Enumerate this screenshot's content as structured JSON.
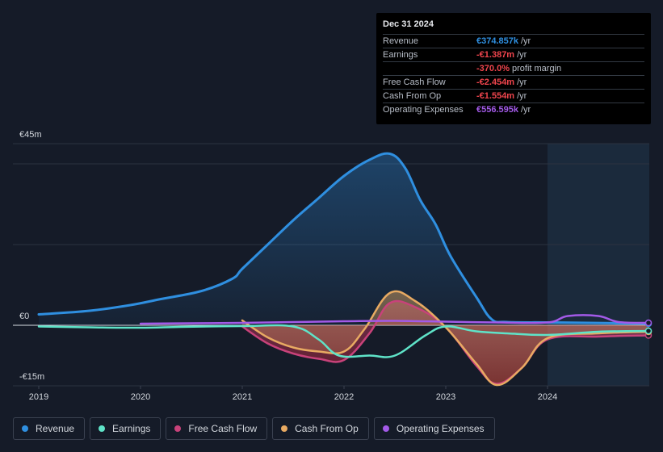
{
  "tooltip": {
    "date": "Dec 31 2024",
    "rows": [
      {
        "label": "Revenue",
        "value": "€374.857k",
        "unit": "/yr",
        "color": "#2f8fe0"
      },
      {
        "label": "Earnings",
        "value": "-€1.387m",
        "unit": "/yr",
        "color": "#f0454d"
      },
      {
        "label": "",
        "value": "-370.0%",
        "unit": "profit margin",
        "color": "#f0454d"
      },
      {
        "label": "Free Cash Flow",
        "value": "-€2.454m",
        "unit": "/yr",
        "color": "#f0454d"
      },
      {
        "label": "Cash From Op",
        "value": "-€1.554m",
        "unit": "/yr",
        "color": "#f0454d"
      },
      {
        "label": "Operating Expenses",
        "value": "€556.595k",
        "unit": "/yr",
        "color": "#a35ae8"
      }
    ]
  },
  "legend": [
    {
      "label": "Revenue",
      "color": "#2f8fe0"
    },
    {
      "label": "Earnings",
      "color": "#5fe3c8"
    },
    {
      "label": "Free Cash Flow",
      "color": "#c8427a"
    },
    {
      "label": "Cash From Op",
      "color": "#e8aa62"
    },
    {
      "label": "Operating Expenses",
      "color": "#a35ae8"
    }
  ],
  "chart_data": {
    "type": "area",
    "currency": "€",
    "y_tick_labels": [
      "€45m",
      "€0",
      "-€15m"
    ],
    "y_ticks": [
      45,
      0,
      -15
    ],
    "ylim": [
      -15,
      45
    ],
    "xlim": [
      2019.0,
      2025.0
    ],
    "x_ticks": [
      2019,
      2020,
      2021,
      2022,
      2023,
      2024
    ],
    "x_tick_labels": [
      "2019",
      "2020",
      "2021",
      "2022",
      "2023",
      "2024"
    ],
    "forecast_start": 2024.0,
    "series": [
      {
        "name": "Revenue",
        "color": "#2f8fe0",
        "fill": true,
        "points": [
          [
            2019.0,
            2.7
          ],
          [
            2019.5,
            3.6
          ],
          [
            2019.9,
            5.0
          ],
          [
            2020.2,
            6.5
          ],
          [
            2020.6,
            8.5
          ],
          [
            2020.9,
            11.5
          ],
          [
            2021.0,
            14
          ],
          [
            2021.25,
            20
          ],
          [
            2021.5,
            26
          ],
          [
            2021.75,
            31.5
          ],
          [
            2022.0,
            37
          ],
          [
            2022.25,
            41
          ],
          [
            2022.45,
            42.5
          ],
          [
            2022.6,
            39
          ],
          [
            2022.75,
            31
          ],
          [
            2022.9,
            25
          ],
          [
            2023.05,
            17
          ],
          [
            2023.3,
            7
          ],
          [
            2023.45,
            1.5
          ],
          [
            2023.6,
            0.8
          ],
          [
            2024.0,
            0.7
          ],
          [
            2024.4,
            0.6
          ],
          [
            2025.0,
            0.4
          ]
        ]
      },
      {
        "name": "Earnings",
        "color": "#5fe3c8",
        "fill": false,
        "points": [
          [
            2019.0,
            -0.3
          ],
          [
            2019.5,
            -0.5
          ],
          [
            2020.0,
            -0.6
          ],
          [
            2020.4,
            -0.4
          ],
          [
            2021.0,
            -0.2
          ],
          [
            2021.5,
            -0.3
          ],
          [
            2021.75,
            -3.5
          ],
          [
            2021.95,
            -7.5
          ],
          [
            2022.25,
            -7.5
          ],
          [
            2022.5,
            -7.5
          ],
          [
            2022.8,
            -2.5
          ],
          [
            2023.0,
            -0.3
          ],
          [
            2023.3,
            -1.5
          ],
          [
            2023.6,
            -2.0
          ],
          [
            2024.0,
            -2.4
          ],
          [
            2024.5,
            -1.6
          ],
          [
            2025.0,
            -1.4
          ]
        ]
      },
      {
        "name": "Free Cash Flow",
        "color": "#c8427a",
        "fill": true,
        "points": [
          [
            2021.0,
            -0.3
          ],
          [
            2021.25,
            -4.5
          ],
          [
            2021.5,
            -7.0
          ],
          [
            2021.75,
            -8.3
          ],
          [
            2022.0,
            -8.6
          ],
          [
            2022.25,
            -2.0
          ],
          [
            2022.45,
            5.5
          ],
          [
            2022.7,
            4.5
          ],
          [
            2023.0,
            -0.5
          ],
          [
            2023.3,
            -10.0
          ],
          [
            2023.5,
            -14.5
          ],
          [
            2023.75,
            -10.5
          ],
          [
            2024.0,
            -3.5
          ],
          [
            2024.5,
            -2.8
          ],
          [
            2025.0,
            -2.5
          ]
        ]
      },
      {
        "name": "Cash From Op",
        "color": "#e8aa62",
        "fill": true,
        "points": [
          [
            2021.0,
            1.2
          ],
          [
            2021.25,
            -3.0
          ],
          [
            2021.5,
            -5.5
          ],
          [
            2021.75,
            -6.5
          ],
          [
            2022.0,
            -6.5
          ],
          [
            2022.2,
            -1.0
          ],
          [
            2022.45,
            8.0
          ],
          [
            2022.7,
            6.0
          ],
          [
            2023.0,
            -0.5
          ],
          [
            2023.3,
            -9.5
          ],
          [
            2023.5,
            -14.8
          ],
          [
            2023.75,
            -10.5
          ],
          [
            2024.0,
            -3.2
          ],
          [
            2024.5,
            -2.0
          ],
          [
            2025.0,
            -1.6
          ]
        ]
      },
      {
        "name": "Operating Expenses",
        "color": "#a35ae8",
        "fill": false,
        "points": [
          [
            2020.0,
            0.4
          ],
          [
            2020.5,
            0.5
          ],
          [
            2021.0,
            0.6
          ],
          [
            2022.0,
            1.0
          ],
          [
            2022.5,
            1.1
          ],
          [
            2023.0,
            0.9
          ],
          [
            2023.5,
            0.7
          ],
          [
            2024.0,
            0.7
          ],
          [
            2024.2,
            2.3
          ],
          [
            2024.5,
            2.3
          ],
          [
            2024.7,
            0.8
          ],
          [
            2025.0,
            0.6
          ]
        ]
      }
    ]
  }
}
